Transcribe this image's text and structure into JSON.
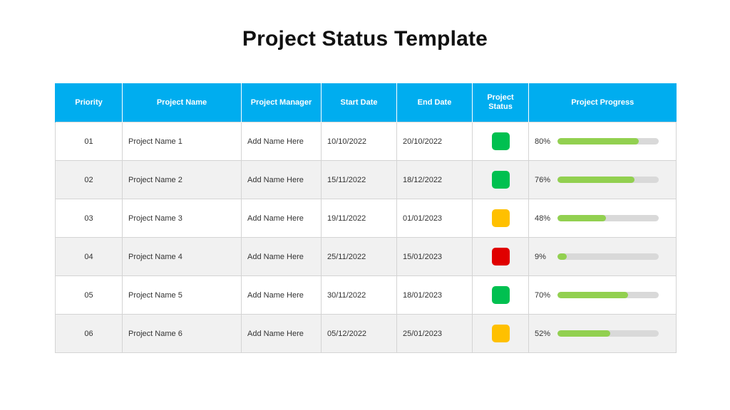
{
  "title": "Project Status Template",
  "colors": {
    "header_bg": "#00adef",
    "progress_fill": "#92d050",
    "status_green": "#00c050",
    "status_yellow": "#ffc000",
    "status_red": "#e00000"
  },
  "table": {
    "headers": {
      "priority": "Priority",
      "project_name": "Project Name",
      "project_manager": "Project Manager",
      "start_date": "Start Date",
      "end_date": "End Date",
      "project_status": "Project Status",
      "project_progress": "Project Progress"
    },
    "rows": [
      {
        "priority": "01",
        "project_name": "Project Name 1",
        "manager": "Add Name Here",
        "start": "10/10/2022",
        "end": "20/10/2022",
        "status": "green",
        "progress_label": "80%",
        "progress": 0.8
      },
      {
        "priority": "02",
        "project_name": "Project Name 2",
        "manager": "Add Name Here",
        "start": "15/11/2022",
        "end": "18/12/2022",
        "status": "green",
        "progress_label": "76%",
        "progress": 0.76
      },
      {
        "priority": "03",
        "project_name": "Project Name 3",
        "manager": "Add Name Here",
        "start": "19/11/2022",
        "end": "01/01/2023",
        "status": "yellow",
        "progress_label": "48%",
        "progress": 0.48
      },
      {
        "priority": "04",
        "project_name": "Project Name 4",
        "manager": "Add Name Here",
        "start": "25/11/2022",
        "end": "15/01/2023",
        "status": "red",
        "progress_label": "9%",
        "progress": 0.09
      },
      {
        "priority": "05",
        "project_name": "Project Name 5",
        "manager": "Add Name Here",
        "start": "30/11/2022",
        "end": "18/01/2023",
        "status": "green",
        "progress_label": "70%",
        "progress": 0.7
      },
      {
        "priority": "06",
        "project_name": "Project Name 6",
        "manager": "Add Name Here",
        "start": "05/12/2022",
        "end": "25/01/2023",
        "status": "yellow",
        "progress_label": "52%",
        "progress": 0.52
      }
    ]
  }
}
